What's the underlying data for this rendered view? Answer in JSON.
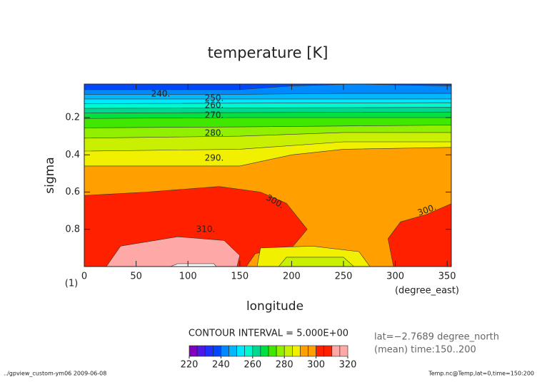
{
  "chart_data": {
    "type": "contour",
    "title": "temperature [K]",
    "x_label": "longitude",
    "x_unit": "(degree_east)",
    "y_label": "sigma",
    "y_unit": "(1)",
    "xlim": [
      0,
      354
    ],
    "xticks": [
      0,
      50,
      100,
      150,
      200,
      250,
      300,
      350
    ],
    "ylim": [
      0.02,
      1.0
    ],
    "yticks": [
      0.2,
      0.4,
      0.6,
      0.8
    ],
    "contour_labels": [
      {
        "value": 240,
        "label": "240."
      },
      {
        "value": 250,
        "label": "250."
      },
      {
        "value": 260,
        "label": "260."
      },
      {
        "value": 270,
        "label": "270."
      },
      {
        "value": 280,
        "label": "280."
      },
      {
        "value": 290,
        "label": "290."
      },
      {
        "value": 300,
        "label": "300."
      },
      {
        "value": 300,
        "label": "300."
      },
      {
        "value": 310,
        "label": "310."
      }
    ],
    "contour_interval": "CONTOUR INTERVAL = 5.000E+00",
    "info": [
      "lat=−2.7689 degree_north",
      "(mean) time:150..200"
    ],
    "colorbar": {
      "levels": [
        220,
        225,
        230,
        235,
        240,
        245,
        250,
        255,
        260,
        265,
        270,
        275,
        280,
        285,
        290,
        295,
        300,
        305,
        310,
        315,
        320
      ],
      "colors": [
        "#8000c0",
        "#5018e8",
        "#2030ff",
        "#0048ff",
        "#0088ff",
        "#00b8ff",
        "#00e8ff",
        "#00f8d0",
        "#00d890",
        "#00e040",
        "#40e800",
        "#90f000",
        "#c8f000",
        "#f0f000",
        "#ffa000",
        "#ffa000",
        "#ff2000",
        "#ff2000",
        "#ffa8a8",
        "#ffa8a8"
      ],
      "ticks": [
        220,
        240,
        260,
        280,
        300,
        320
      ]
    },
    "footer_left": "../gpview_custom-ym06  2009-06-08",
    "footer_right": "Temp.nc@Temp,lat=0,time=150:200"
  }
}
